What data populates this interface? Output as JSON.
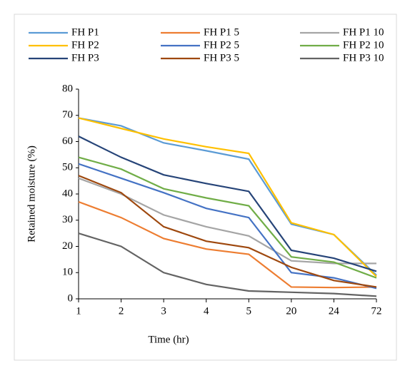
{
  "chart_data": {
    "type": "line",
    "x_label": "Time (hr)",
    "y_label": "Retained moisture (%)",
    "categories": [
      "1",
      "2",
      "3",
      "4",
      "5",
      "20",
      "24",
      "72"
    ],
    "ylim": [
      0,
      80
    ],
    "yticks": [
      0,
      10,
      20,
      30,
      40,
      50,
      60,
      70,
      80
    ],
    "grid": false,
    "legend": "top",
    "series": [
      {
        "name": "FH P1",
        "color": "#5b9bd5",
        "values": [
          69,
          66,
          59.5,
          56.5,
          53.3,
          28.5,
          24.5,
          9
        ]
      },
      {
        "name": "FH P1 5",
        "color": "#ed7d31",
        "values": [
          37,
          31,
          23,
          19,
          17,
          4.5,
          4.3,
          4.5
        ]
      },
      {
        "name": "FH P1 10",
        "color": "#a5a5a5",
        "values": [
          46,
          40,
          32,
          27.5,
          24,
          14.5,
          13.5,
          13.5
        ]
      },
      {
        "name": "FH P2",
        "color": "#ffc000",
        "values": [
          69,
          65,
          61,
          58,
          55.5,
          29,
          24.5,
          8.5
        ]
      },
      {
        "name": "FH P2 5",
        "color": "#4472c4",
        "values": [
          51.5,
          46,
          40.5,
          34.5,
          31,
          10,
          8,
          4
        ]
      },
      {
        "name": "FH P2 10",
        "color": "#70ad47",
        "values": [
          54,
          49.5,
          42,
          38.5,
          35.5,
          16,
          14,
          8
        ]
      },
      {
        "name": "FH P3",
        "color": "#264478",
        "values": [
          62,
          54,
          47.3,
          44,
          41,
          18.5,
          15.5,
          10.5
        ]
      },
      {
        "name": "FH P3 5",
        "color": "#9e480e",
        "values": [
          47,
          40.5,
          27.5,
          22,
          19.5,
          12,
          7,
          4.5
        ]
      },
      {
        "name": "FH P3 10",
        "color": "#636363",
        "values": [
          25,
          20,
          10,
          5.5,
          3,
          2.5,
          2,
          1
        ]
      }
    ]
  }
}
